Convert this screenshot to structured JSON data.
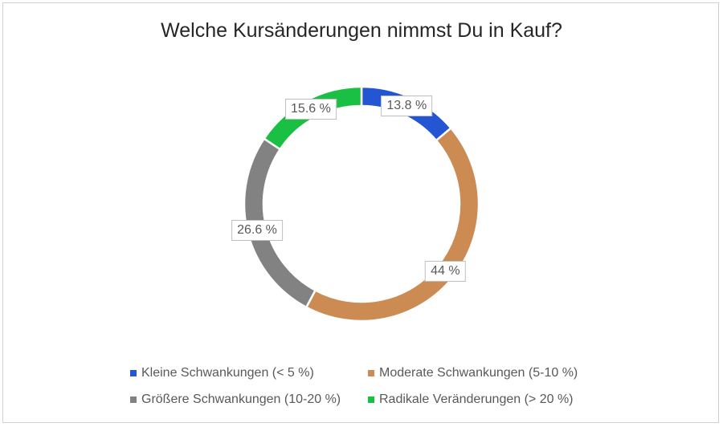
{
  "chart_data": {
    "type": "pie",
    "style": "donut",
    "title": "Welche Kursänderungen nimmst Du in Kauf?",
    "categories": [
      "Kleine Schwankungen (< 5 %)",
      "Moderate Schwankungen (5-10 %)",
      "Größere Schwankungen (10-20 %)",
      "Radikale Veränderungen (> 20 %)"
    ],
    "values": [
      13.8,
      44,
      26.6,
      15.6
    ],
    "data_labels": [
      "13.8 %",
      "44 %",
      "26.6 %",
      "15.6 %"
    ],
    "colors": [
      "#2456d3",
      "#cc8b52",
      "#828282",
      "#19c043"
    ],
    "legend": "bottom"
  }
}
